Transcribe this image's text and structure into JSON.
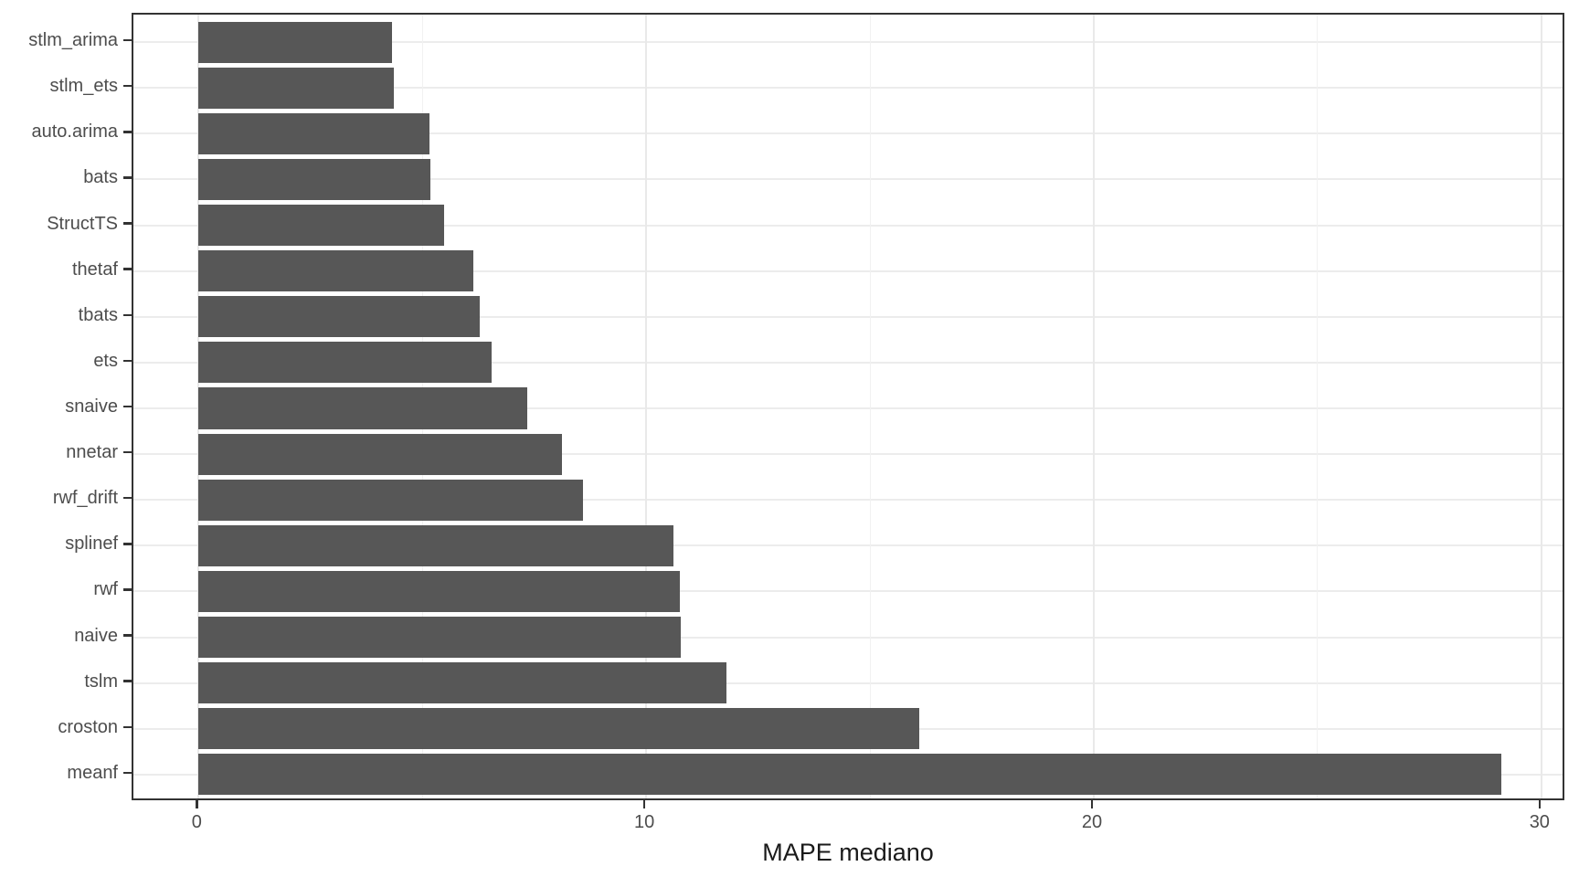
{
  "chart_data": {
    "type": "bar",
    "orientation": "horizontal",
    "title": "",
    "xlabel": "MAPE mediano",
    "ylabel": "",
    "categories": [
      "stlm_arima",
      "stlm_ets",
      "auto.arima",
      "bats",
      "StructTS",
      "thetaf",
      "tbats",
      "ets",
      "snaive",
      "nnetar",
      "rwf_drift",
      "splinef",
      "rwf",
      "naive",
      "tslm",
      "croston",
      "meanf"
    ],
    "values": [
      4.33,
      4.36,
      5.16,
      5.18,
      5.48,
      6.14,
      6.29,
      6.54,
      7.34,
      8.12,
      8.59,
      10.6,
      10.76,
      10.78,
      11.8,
      16.1,
      29.1
    ],
    "x_ticks": [
      0,
      10,
      20,
      30
    ],
    "x_tick_labels": [
      "0",
      "10",
      "20",
      "30"
    ],
    "x_minor_ticks": [
      5,
      15,
      25
    ],
    "xlim": [
      -1.46,
      30.56
    ],
    "grid": true,
    "legend_position": "none",
    "bar_color": "#575757",
    "gridline_color": "#ececec",
    "panel_border_color": "#333333",
    "tick_label_color": "#4d4d4d",
    "axis_title_color": "#1a1a1a",
    "background_color": "#ffffff"
  }
}
